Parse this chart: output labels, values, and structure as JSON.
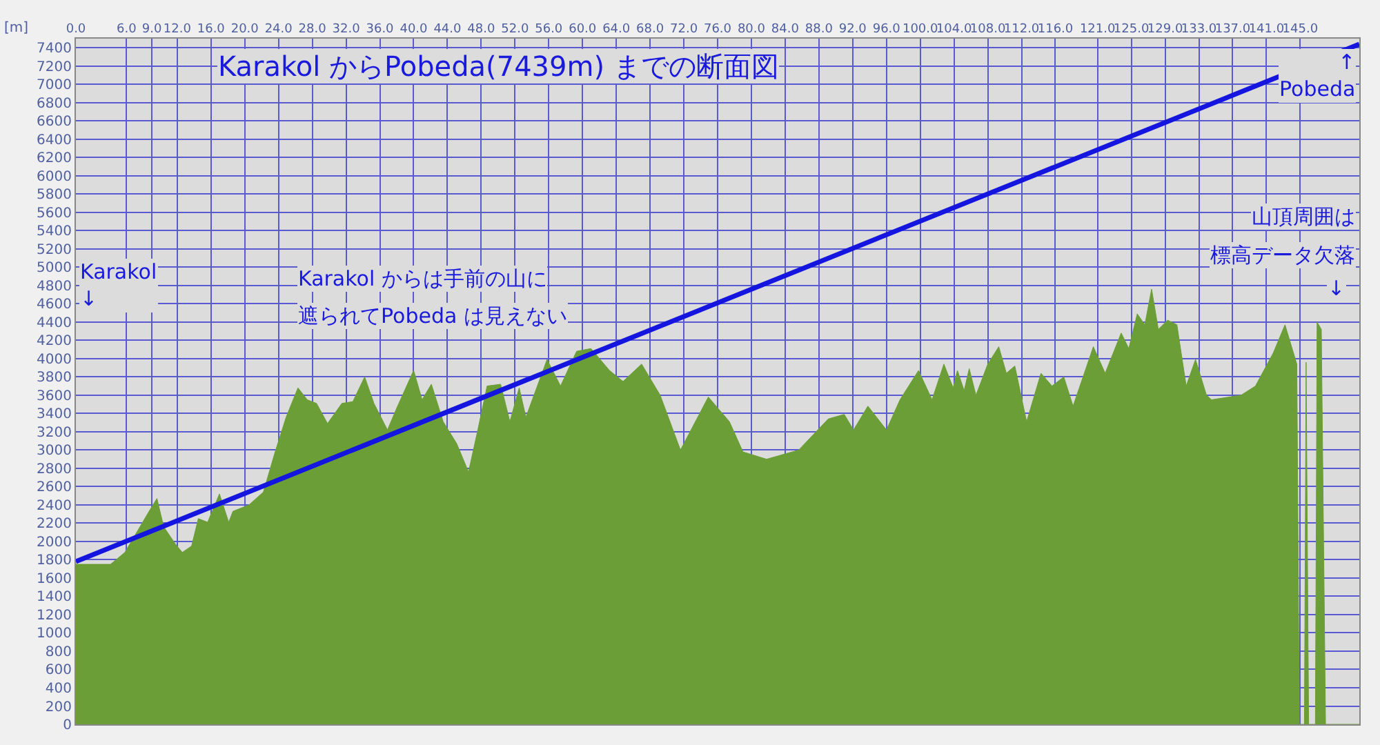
{
  "chart_data": {
    "type": "area",
    "title": "Karakol からPobeda(7439m) までの断面図",
    "ylabel": "[m]",
    "xlim": [
      0,
      152
    ],
    "ylim": [
      0,
      7500
    ],
    "xticks": [
      {
        "value": 0,
        "label": "0.0"
      },
      {
        "value": 6,
        "label": "6.0"
      },
      {
        "value": 9,
        "label": "9.0"
      },
      {
        "value": 12,
        "label": "12.0"
      },
      {
        "value": 16,
        "label": "16.0"
      },
      {
        "value": 20,
        "label": "20.0"
      },
      {
        "value": 24,
        "label": "24.0"
      },
      {
        "value": 28,
        "label": "28.0"
      },
      {
        "value": 32,
        "label": "32.0"
      },
      {
        "value": 36,
        "label": "36.0"
      },
      {
        "value": 40,
        "label": "40.0"
      },
      {
        "value": 44,
        "label": "44.0"
      },
      {
        "value": 48,
        "label": "48.0"
      },
      {
        "value": 52,
        "label": "52.0"
      },
      {
        "value": 56,
        "label": "56.0"
      },
      {
        "value": 60,
        "label": "60.0"
      },
      {
        "value": 64,
        "label": "64.0"
      },
      {
        "value": 68,
        "label": "68.0"
      },
      {
        "value": 72,
        "label": "72.0"
      },
      {
        "value": 76,
        "label": "76.0"
      },
      {
        "value": 80,
        "label": "80.0"
      },
      {
        "value": 84,
        "label": "84.0"
      },
      {
        "value": 88,
        "label": "88.0"
      },
      {
        "value": 92,
        "label": "92.0"
      },
      {
        "value": 96,
        "label": "96.0"
      },
      {
        "value": 100,
        "label": "100.0"
      },
      {
        "value": 104,
        "label": "104.0"
      },
      {
        "value": 108,
        "label": "108.0"
      },
      {
        "value": 112,
        "label": "112.0"
      },
      {
        "value": 116,
        "label": "116.0"
      },
      {
        "value": 121,
        "label": "121.0"
      },
      {
        "value": 125,
        "label": "125.0"
      },
      {
        "value": 129,
        "label": "129.0"
      },
      {
        "value": 133,
        "label": "133.0"
      },
      {
        "value": 137,
        "label": "137.0"
      },
      {
        "value": 141,
        "label": "141.0"
      },
      {
        "value": 145,
        "label": "145.0"
      }
    ],
    "yticks": [
      0,
      200,
      400,
      600,
      800,
      1000,
      1200,
      1400,
      1600,
      1800,
      2000,
      2200,
      2400,
      2600,
      2800,
      3000,
      3200,
      3400,
      3600,
      3800,
      4000,
      4200,
      4400,
      4600,
      4800,
      5000,
      5200,
      5400,
      5600,
      5800,
      6000,
      6200,
      6400,
      6600,
      6800,
      7000,
      7200,
      7400
    ],
    "grid": true,
    "series": [
      {
        "color": "#6b9e36",
        "x": [
          0,
          4.1,
          5.8,
          8.8,
          9.6,
          10.4,
          11.8,
          12.6,
          13.7,
          14.5,
          15.6,
          17,
          18.1,
          18.6,
          20.5,
          22.2,
          23.6,
          24.9,
          26.3,
          27.4,
          28.5,
          29.8,
          31.5,
          32.8,
          34.2,
          35.3,
          36.9,
          38,
          40,
          41,
          42.1,
          43.5,
          45.1,
          46.5,
          47.6,
          48.7,
          50.3,
          51.4,
          52.5,
          53.3,
          55.8,
          57.4,
          59.3,
          61,
          63.2,
          64.8,
          67,
          69.2,
          71.6,
          74.9,
          77.4,
          79,
          81.8,
          85.6,
          89.1,
          91,
          92.1,
          93.8,
          96,
          97.6,
          99.8,
          101.4,
          102.8,
          103.9,
          104.4,
          105.2,
          105.8,
          106.6,
          108,
          109.3,
          110.2,
          111.2,
          112.6,
          114.3,
          115.6,
          117,
          118.1,
          120.5,
          121.9,
          123.8,
          124.7,
          125.7,
          126.6,
          127.4,
          128.2,
          129.3,
          130.4,
          131.5,
          132.6,
          133.9,
          134.5,
          138,
          139.7,
          141.8,
          143.2,
          144.6,
          144.9,
          145.5,
          145.7,
          146,
          146.8,
          147,
          147.5,
          148,
          152
        ],
        "values": [
          1750,
          1750,
          1880,
          2350,
          2470,
          2160,
          1970,
          1880,
          1950,
          2250,
          2210,
          2520,
          2210,
          2330,
          2400,
          2540,
          2980,
          3360,
          3680,
          3550,
          3510,
          3290,
          3510,
          3530,
          3800,
          3510,
          3220,
          3460,
          3870,
          3550,
          3720,
          3310,
          3070,
          2760,
          3220,
          3700,
          3720,
          3310,
          3680,
          3360,
          3990,
          3700,
          4080,
          4110,
          3870,
          3750,
          3940,
          3600,
          3000,
          3580,
          3310,
          2980,
          2900,
          3000,
          3340,
          3390,
          3220,
          3480,
          3220,
          3550,
          3870,
          3550,
          3940,
          3680,
          3870,
          3650,
          3890,
          3600,
          3940,
          4130,
          3840,
          3920,
          3310,
          3840,
          3700,
          3800,
          3480,
          4130,
          3840,
          4280,
          4110,
          4490,
          4370,
          4760,
          4320,
          4420,
          4370,
          3700,
          3990,
          3600,
          3550,
          3600,
          3700,
          4060,
          4370,
          3940,
          0,
          0,
          3960,
          0,
          0,
          4400,
          4320,
          0,
          0
        ]
      },
      {
        "type": "line",
        "color": "#1515e0",
        "x": [
          0,
          152
        ],
        "values": [
          1780,
          7439
        ]
      }
    ],
    "annotations": [
      "Karakol\n↓",
      "Karakol からは手前の山に",
      "遮られてPobeda は見えない",
      "↑\nPobeda",
      "山頂周囲は",
      "標高データ欠落",
      "↓"
    ]
  }
}
